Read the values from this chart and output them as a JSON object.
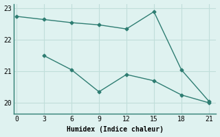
{
  "line1_x": [
    0,
    3,
    6,
    9,
    12,
    15,
    18,
    21
  ],
  "line1_y": [
    22.75,
    22.65,
    22.55,
    22.48,
    22.35,
    22.9,
    21.05,
    20.05
  ],
  "line2_x": [
    3,
    6,
    9,
    12,
    15,
    18,
    21
  ],
  "line2_y": [
    21.5,
    21.05,
    20.35,
    20.9,
    20.7,
    20.25,
    20.0
  ],
  "line3_x": [
    3,
    6,
    9
  ],
  "line3_y": [
    21.5,
    21.05,
    20.35
  ],
  "line_color": "#2e7d72",
  "bg_color": "#dff2f0",
  "grid_color": "#c0deda",
  "xlabel": "Humidex (Indice chaleur)",
  "xticks": [
    0,
    3,
    6,
    9,
    12,
    15,
    18,
    21
  ],
  "yticks": [
    20,
    21,
    22,
    23
  ],
  "ylim": [
    19.65,
    23.15
  ],
  "xlim": [
    -0.3,
    21.8
  ],
  "xlabel_fontsize": 7,
  "tick_fontsize": 7,
  "marker": "D",
  "marker_size": 2.5,
  "line_width": 1.0
}
